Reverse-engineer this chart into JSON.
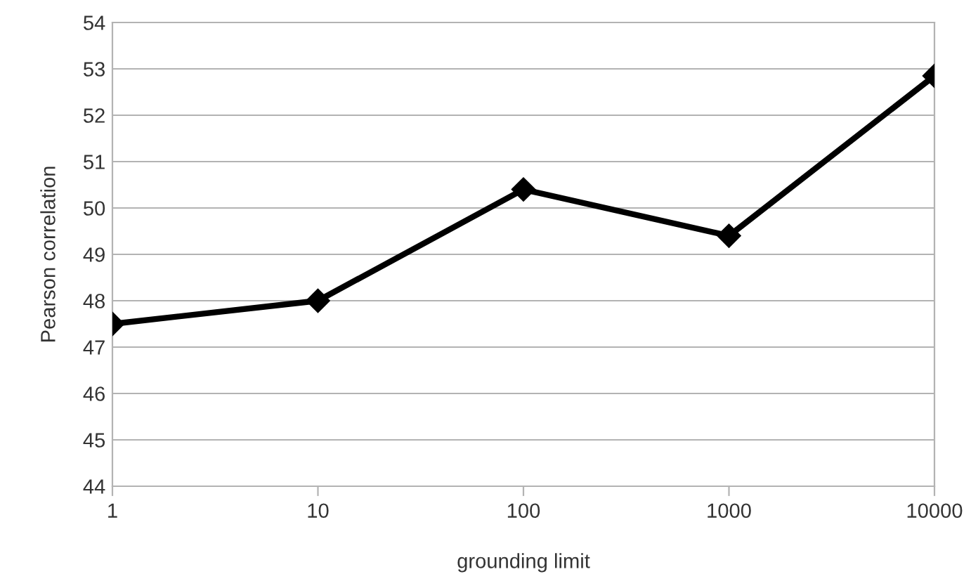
{
  "chart_data": {
    "type": "line",
    "xlabel": "grounding limit",
    "ylabel": "Pearson correlation",
    "x": [
      1,
      10,
      100,
      1000,
      10000
    ],
    "series": [
      {
        "color": "#000000",
        "values": [
          47.5,
          48.0,
          50.4,
          49.4,
          52.85
        ]
      }
    ],
    "log": "x",
    "xlim": [
      1,
      10000
    ],
    "xticks": [
      1,
      10,
      100,
      1000,
      10000
    ],
    "ylim": [
      44,
      54
    ],
    "yticks": [
      44,
      45,
      46,
      47,
      48,
      49,
      50,
      51,
      52,
      53,
      54
    ],
    "grid": "y",
    "marker": "diamond",
    "line_style": "solid"
  }
}
